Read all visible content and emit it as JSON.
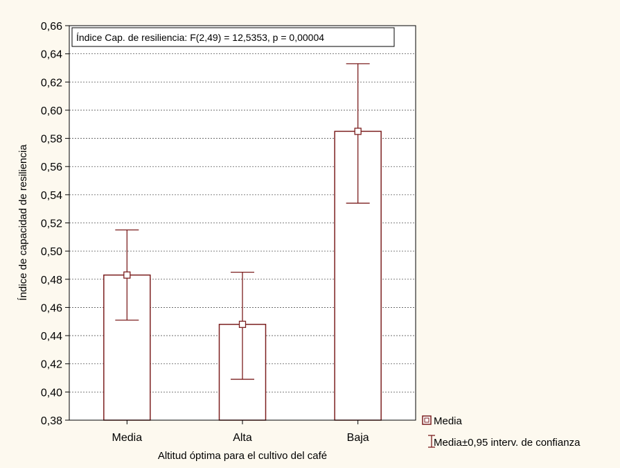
{
  "chart_data": {
    "type": "bar",
    "annotation": "Índice Cap. de resiliencia:  F(2,49) = 12,5353,  p = 0,00004",
    "xlabel": "Altitud óptima para el cultivo del café",
    "ylabel": "Índice de capacidad de resiliencia",
    "categories": [
      "Media",
      "Alta",
      "Baja"
    ],
    "means": [
      0.483,
      0.448,
      0.585
    ],
    "ci_low": [
      0.451,
      0.409,
      0.534
    ],
    "ci_high": [
      0.515,
      0.485,
      0.633
    ],
    "ylim": [
      0.38,
      0.66
    ],
    "yticks": [
      "0,38",
      "0,40",
      "0,42",
      "0,44",
      "0,46",
      "0,48",
      "0,50",
      "0,52",
      "0,54",
      "0,56",
      "0,58",
      "0,60",
      "0,62",
      "0,64",
      "0,66"
    ],
    "grid": true,
    "legend": {
      "position": "bottom-right",
      "items": [
        "Media",
        "Media±0,95 interv. de confianza"
      ]
    },
    "colors": {
      "bar": "#7b1e1e",
      "plot_bg": "#ffffff",
      "page_bg": "#fdf9ef"
    }
  }
}
